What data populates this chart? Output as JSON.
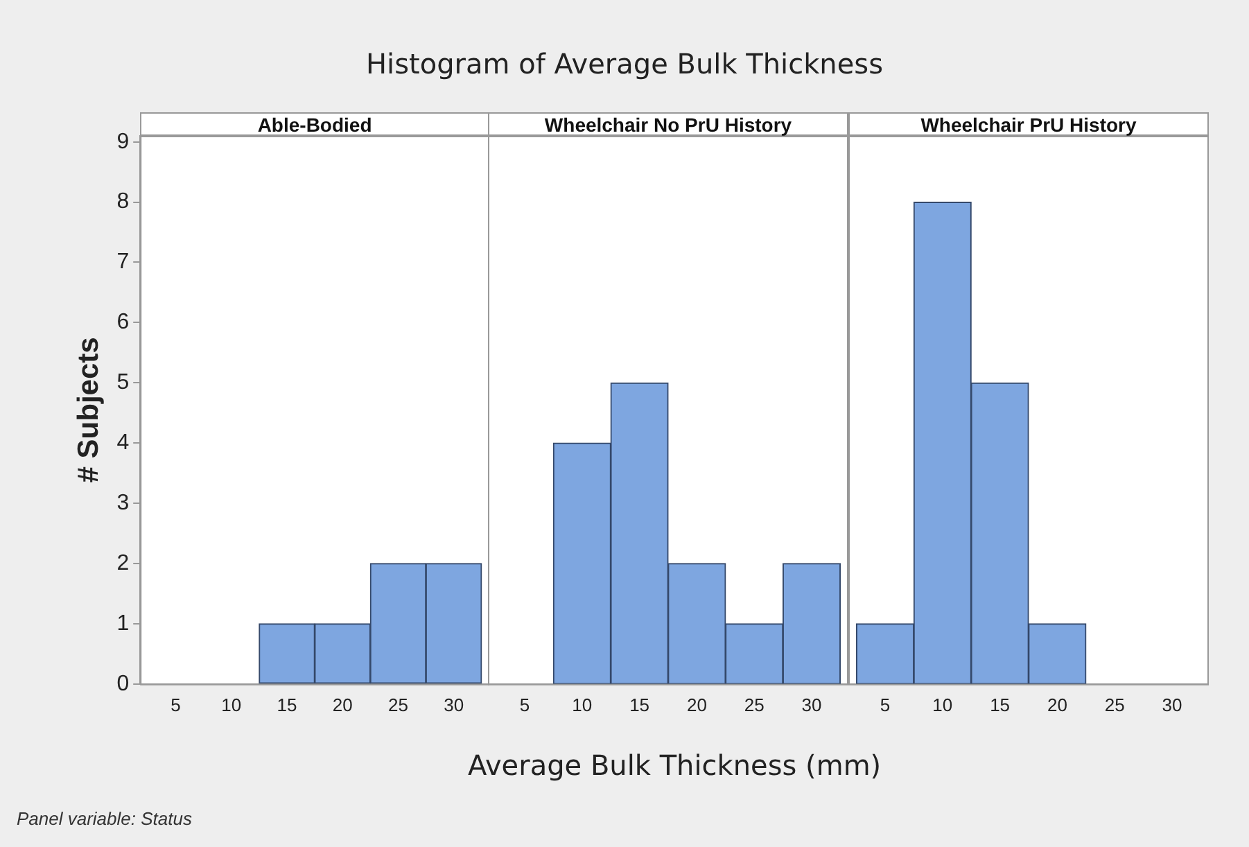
{
  "chart_data": [
    {
      "type": "histogram",
      "title": "Histogram of Average Bulk Thickness",
      "subtitle": "Able-Bodied",
      "ylabel": "# Subjects",
      "annotations": [
        "Panel variable: Status"
      ],
      "bins": [
        2.5,
        7.5,
        12.5,
        17.5,
        22.5,
        27.5,
        32.5
      ],
      "values": [
        0,
        0,
        1,
        1,
        2,
        2
      ],
      "color": "#7ea6e0",
      "xlim": [
        1.8,
        33.2
      ],
      "xticks": [
        5,
        10,
        15,
        20,
        25,
        30
      ],
      "ylim": [
        0,
        9.1
      ],
      "yticks": [
        0,
        1,
        2,
        3,
        4,
        5,
        6,
        7,
        8,
        9
      ]
    },
    {
      "type": "histogram",
      "subtitle": "Wheelchair No PrU History",
      "xlabel": "Average Bulk Thickness (mm)",
      "bins": [
        2.5,
        7.5,
        12.5,
        17.5,
        22.5,
        27.5,
        32.5
      ],
      "values": [
        0,
        4,
        5,
        2,
        1,
        2
      ],
      "color": "#7ea6e0",
      "xlim": [
        1.8,
        33.2
      ],
      "xticks": [
        5,
        10,
        15,
        20,
        25,
        30
      ],
      "ylim": [
        0,
        9.1
      ],
      "yticks": [
        0,
        1,
        2,
        3,
        4,
        5,
        6,
        7,
        8,
        9
      ],
      "tick_labels": "x"
    },
    {
      "type": "histogram",
      "subtitle": "Wheelchair PrU History",
      "bins": [
        2.5,
        7.5,
        12.5,
        17.5,
        22.5,
        27.5,
        32.5
      ],
      "values": [
        1,
        8,
        5,
        1,
        0,
        0
      ],
      "color": "#7ea6e0",
      "xlim": [
        1.8,
        33.2
      ],
      "xticks": [
        5,
        10,
        15,
        20,
        25,
        30
      ],
      "ylim": [
        0,
        9.1
      ],
      "yticks": [
        0,
        1,
        2,
        3,
        4,
        5,
        6,
        7,
        8,
        9
      ],
      "tick_labels": "x"
    }
  ]
}
